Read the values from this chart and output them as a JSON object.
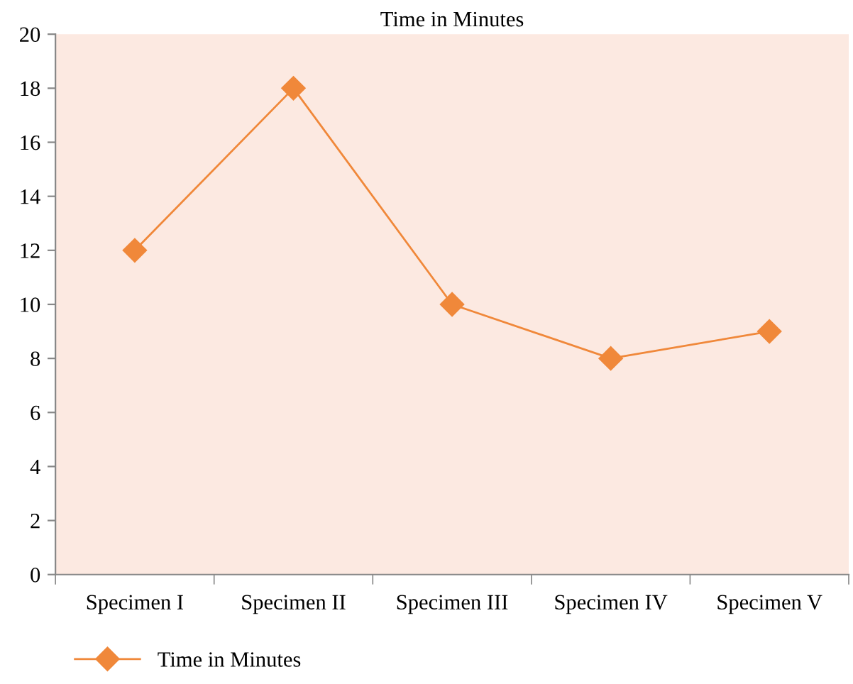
{
  "chart_data": {
    "type": "line",
    "title": "Time in Minutes",
    "categories": [
      "Specimen I",
      "Specimen II",
      "Specimen III",
      "Specimen IV",
      "Specimen V"
    ],
    "series": [
      {
        "name": "Time in Minutes",
        "color": "#f0883a",
        "values": [
          12,
          18,
          10,
          8,
          9
        ]
      }
    ],
    "ylim": [
      0,
      20
    ],
    "yticks": [
      0,
      2,
      4,
      6,
      8,
      10,
      12,
      14,
      16,
      18,
      20
    ],
    "grid": false,
    "legend": "bottom left",
    "marker": "diamond",
    "line_style": "solid"
  }
}
